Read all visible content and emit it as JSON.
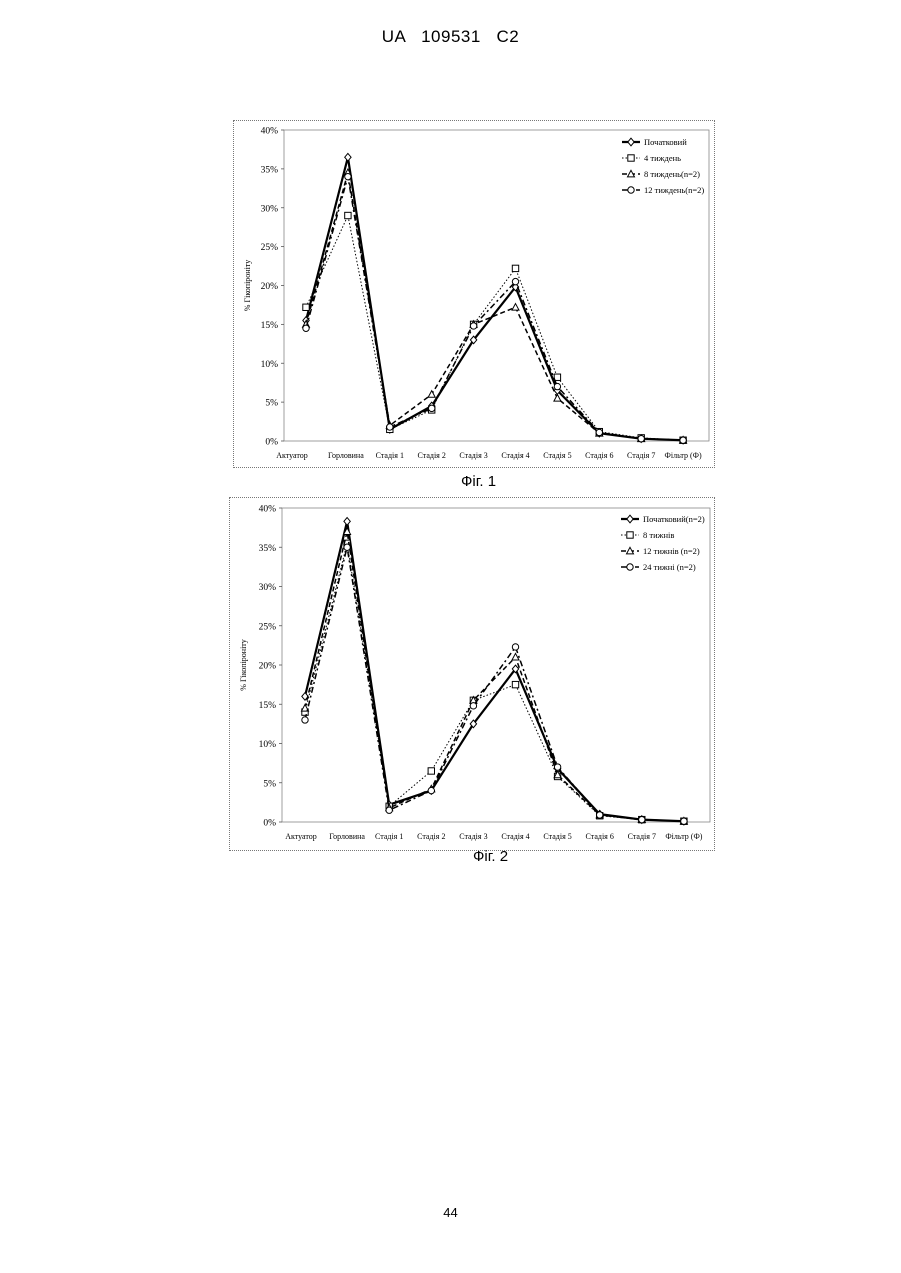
{
  "header": {
    "doc_id": "UA   109531   C2"
  },
  "page_number": "44",
  "chart_data": [
    {
      "type": "line",
      "caption": "Фіг. 1",
      "ylabel": "% Гікопіроніту",
      "ylim": [
        0,
        40
      ],
      "yticks": [
        "0%",
        "5%",
        "10%",
        "15%",
        "20%",
        "25%",
        "30%",
        "35%",
        "40%"
      ],
      "categories": [
        "Актуатор",
        "Горловина",
        "Стадія 1",
        "Стадія 2",
        "Стадія 3",
        "Стадія 4",
        "Стадія 5",
        "Стадія 6",
        "Стадія 7",
        "Фільтр (Ф)"
      ],
      "legend_position": "top-right",
      "grid": false,
      "series": [
        {
          "name": "Початковий",
          "marker": "diamond",
          "dash": "solid",
          "width": 2.2,
          "values": [
            15.5,
            36.5,
            1.5,
            4.5,
            13.0,
            19.8,
            6.5,
            1.0,
            0.3,
            0.1
          ]
        },
        {
          "name": "4 тиждень",
          "marker": "square",
          "dash": "dotted",
          "width": 1.0,
          "values": [
            17.2,
            29.0,
            1.5,
            4.0,
            15.0,
            22.2,
            8.2,
            1.2,
            0.4,
            0.1
          ]
        },
        {
          "name": "8 тиждень(n=2)",
          "marker": "triangle",
          "dash": "dashed",
          "width": 1.5,
          "values": [
            15.0,
            34.5,
            2.0,
            6.0,
            15.0,
            17.2,
            5.5,
            1.0,
            0.3,
            0.1
          ]
        },
        {
          "name": "12 тиждень(n=2)",
          "marker": "circle",
          "dash": "dashdot",
          "width": 1.5,
          "values": [
            14.5,
            34.0,
            1.8,
            4.2,
            14.8,
            20.5,
            7.0,
            1.1,
            0.3,
            0.1
          ]
        }
      ]
    },
    {
      "type": "line",
      "caption": "Фіг. 2",
      "ylabel": "% Гікопіроніту",
      "ylim": [
        0,
        40
      ],
      "yticks": [
        "0%",
        "5%",
        "10%",
        "15%",
        "20%",
        "25%",
        "30%",
        "35%",
        "40%"
      ],
      "categories": [
        "Актуатор",
        "Горловина",
        "Стадія 1",
        "Стадія 2",
        "Стадія 3",
        "Стадія 4",
        "Стадія 5",
        "Стадія 6",
        "Стадія 7",
        "Фільтр (Ф)"
      ],
      "legend_position": "top-right",
      "grid": false,
      "series": [
        {
          "name": "Початковий(n=2)",
          "marker": "diamond",
          "dash": "solid",
          "width": 2.2,
          "values": [
            16.0,
            38.3,
            2.2,
            4.0,
            12.5,
            19.5,
            6.8,
            1.0,
            0.3,
            0.1
          ]
        },
        {
          "name": "8 тижнів",
          "marker": "square",
          "dash": "dotted",
          "width": 1.0,
          "values": [
            14.0,
            35.5,
            2.0,
            6.5,
            15.5,
            17.5,
            5.8,
            0.8,
            0.3,
            0.1
          ]
        },
        {
          "name": "12 тижнів (n=2)",
          "marker": "triangle",
          "dash": "dashed",
          "width": 1.5,
          "values": [
            14.5,
            37.0,
            1.8,
            4.2,
            15.5,
            21.0,
            6.0,
            0.9,
            0.3,
            0.1
          ]
        },
        {
          "name": "24 тижні (n=2)",
          "marker": "circle",
          "dash": "dashdot",
          "width": 1.5,
          "values": [
            13.0,
            35.0,
            1.5,
            4.0,
            14.8,
            22.3,
            7.0,
            0.9,
            0.3,
            0.1
          ]
        }
      ]
    }
  ]
}
